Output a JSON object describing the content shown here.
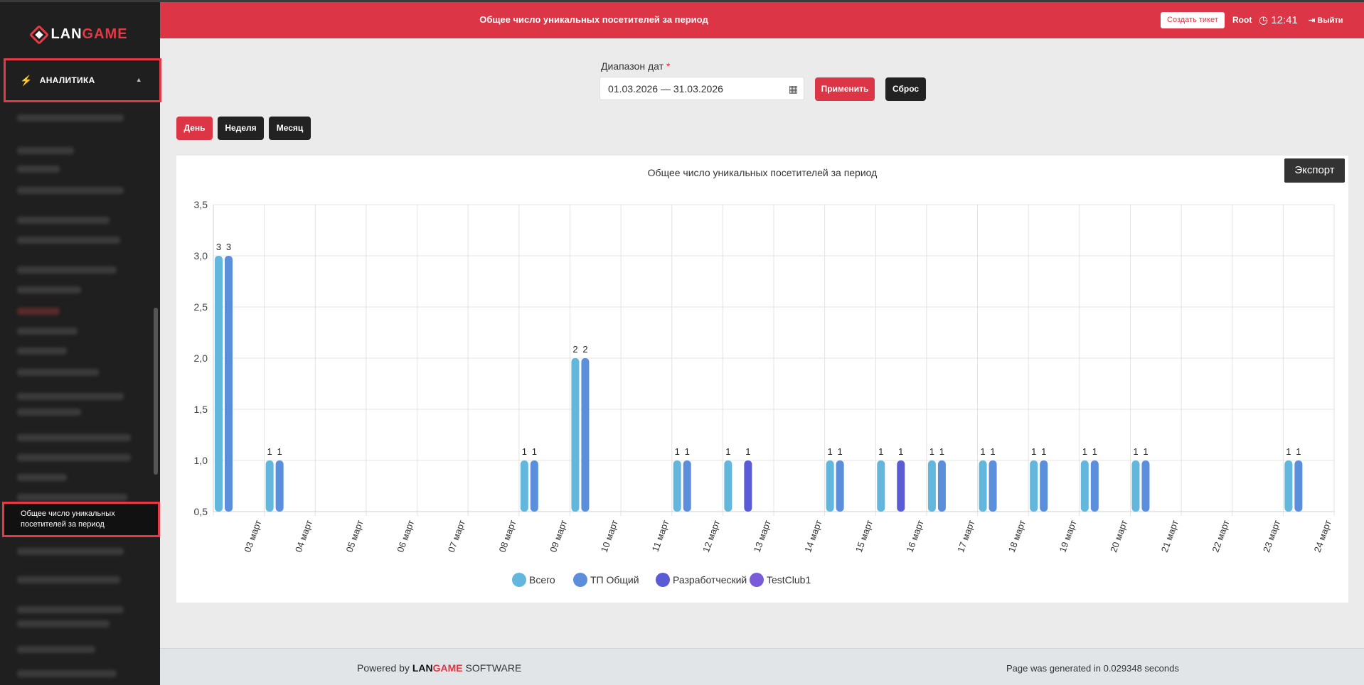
{
  "app": {
    "logo_lan": "LAN",
    "logo_game": "GAME"
  },
  "sidebar": {
    "section_label": "АНАЛИТИКА",
    "active_item": "Общее число уникальных посетителей за период"
  },
  "header": {
    "title": "Общее число уникальных посетителей за период",
    "ticket_button": "Создать тикет",
    "user": "Root",
    "time": "12:41",
    "logout": "Выйти"
  },
  "filters": {
    "date_range_label": "Диапазон дат",
    "required_mark": "*",
    "date_range_value": "01.03.2026 — 31.03.2026",
    "apply_button": "Применить",
    "reset_button": "Сброс",
    "period_buttons": {
      "day": "День",
      "week": "Неделя",
      "month": "Месяц"
    }
  },
  "export_button": "Экспорт",
  "chart_data": {
    "type": "bar",
    "title": "Общее число уникальных посетителей за период",
    "categories": [
      "03 март",
      "04 март",
      "05 март",
      "06 март",
      "07 март",
      "08 март",
      "09 март",
      "10 март",
      "11 март",
      "12 март",
      "13 март",
      "14 март",
      "15 март",
      "16 март",
      "17 март",
      "18 март",
      "19 март",
      "20 март",
      "21 март",
      "22 март",
      "23 март",
      "24 март"
    ],
    "series": [
      {
        "name": "Всего",
        "color": "#63b6dc"
      },
      {
        "name": "ТП Общий",
        "color": "#5b8fdb"
      },
      {
        "name": "Разработческий",
        "color": "#5a5cd6"
      },
      {
        "name": "TestClub1",
        "color": "#7a5cd8"
      }
    ],
    "bars": [
      {
        "x": "03 март",
        "series": "Всего",
        "value": 3
      },
      {
        "x": "03 март",
        "series": "ТП Общий",
        "value": 3
      },
      {
        "x": "04 март",
        "series": "Всего",
        "value": 1
      },
      {
        "x": "04 март",
        "series": "ТП Общий",
        "value": 1
      },
      {
        "x": "09 март",
        "series": "Всего",
        "value": 1
      },
      {
        "x": "09 март",
        "series": "ТП Общий",
        "value": 1
      },
      {
        "x": "10 март",
        "series": "Всего",
        "value": 2
      },
      {
        "x": "10 март",
        "series": "ТП Общий",
        "value": 2
      },
      {
        "x": "12 март",
        "series": "Всего",
        "value": 1
      },
      {
        "x": "12 март",
        "series": "ТП Общий",
        "value": 1
      },
      {
        "x": "13 март",
        "series": "Всего",
        "value": 1
      },
      {
        "x": "13 март",
        "series": "Разработческий",
        "value": 1
      },
      {
        "x": "15 март",
        "series": "Всего",
        "value": 1
      },
      {
        "x": "15 март",
        "series": "ТП Общий",
        "value": 1
      },
      {
        "x": "16 март",
        "series": "Всего",
        "value": 1
      },
      {
        "x": "16 март",
        "series": "Разработческий",
        "value": 1
      },
      {
        "x": "17 март",
        "series": "Всего",
        "value": 1
      },
      {
        "x": "17 март",
        "series": "ТП Общий",
        "value": 1
      },
      {
        "x": "18 март",
        "series": "Всего",
        "value": 1
      },
      {
        "x": "18 март",
        "series": "ТП Общий",
        "value": 1
      },
      {
        "x": "19 март",
        "series": "Всего",
        "value": 1
      },
      {
        "x": "19 март",
        "series": "ТП Общий",
        "value": 1
      },
      {
        "x": "20 март",
        "series": "Всего",
        "value": 1
      },
      {
        "x": "20 март",
        "series": "ТП Общий",
        "value": 1
      },
      {
        "x": "21 март",
        "series": "Всего",
        "value": 1
      },
      {
        "x": "21 март",
        "series": "ТП Общий",
        "value": 1
      },
      {
        "x": "24 март",
        "series": "Всего",
        "value": 1
      },
      {
        "x": "24 март",
        "series": "ТП Общий",
        "value": 1
      }
    ],
    "ylim": [
      0.5,
      3.5
    ],
    "yticks": [
      "0,5",
      "1,0",
      "1,5",
      "2,0",
      "2,5",
      "3,0",
      "3,5"
    ],
    "grid": true,
    "legend": "bottom"
  },
  "footer": {
    "powered_by": "Powered by",
    "brand_lan": "LAN",
    "brand_game": "GAME",
    "software": "SOFTWARE",
    "generated": "Page was generated in 0.029348 seconds"
  }
}
